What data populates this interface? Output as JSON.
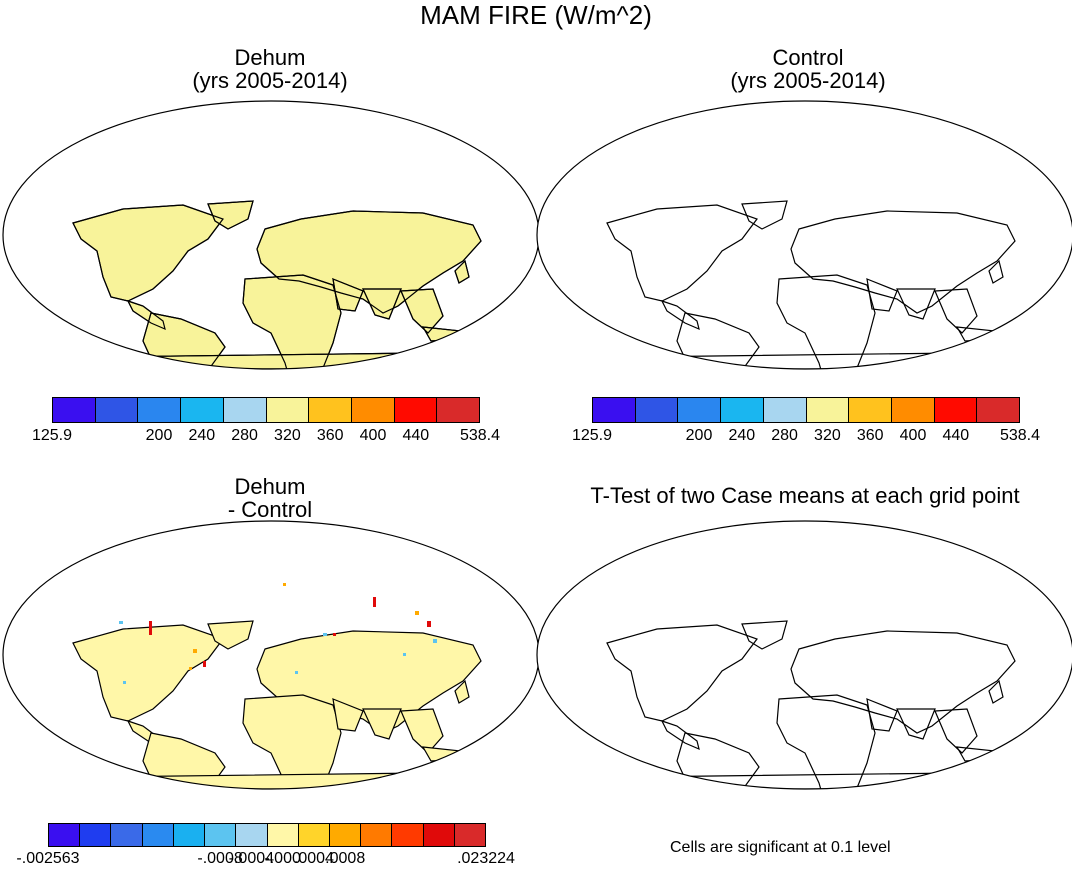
{
  "main_title": "MAM FIRE (W/m^2)",
  "panels": [
    {
      "id": "dehum",
      "title_line1": "Dehum",
      "title_line2": "(yrs 2005-2014)"
    },
    {
      "id": "control",
      "title_line1": "Control",
      "title_line2": "(yrs 2005-2014)"
    },
    {
      "id": "diff",
      "title_line1": "Dehum",
      "title_line2": "- Control"
    },
    {
      "id": "ttest",
      "title_line1": "T-Test of two Case means at each grid point"
    }
  ],
  "colorbar_abs": {
    "colors": [
      "#3a0ff0",
      "#2f55e6",
      "#2a86ef",
      "#1ab6f0",
      "#a8d6f0",
      "#f8f39a",
      "#ffc21e",
      "#ff8c00",
      "#ff0a00",
      "#d92a2a"
    ],
    "labels": [
      "125.9",
      "200",
      "240",
      "280",
      "320",
      "360",
      "400",
      "440",
      "538.4"
    ]
  },
  "colorbar_diff": {
    "colors": [
      "#3a0ff0",
      "#1f3df0",
      "#3a6ae8",
      "#2a8af0",
      "#1ab0f0",
      "#5cc4f0",
      "#a8d6f0",
      "#fff7a8",
      "#ffd42a",
      "#ffaa00",
      "#ff7a00",
      "#ff3a00",
      "#e00a0a",
      "#d92a2a"
    ],
    "labels": [
      "-.002563",
      "-.0008",
      "-.0004",
      "-.000",
      ".0004",
      ".0008",
      ".023224"
    ]
  },
  "ttest_note": "Cells are significant at 0.1 level",
  "icons": {
    "map_frame": "robinson-oval"
  }
}
